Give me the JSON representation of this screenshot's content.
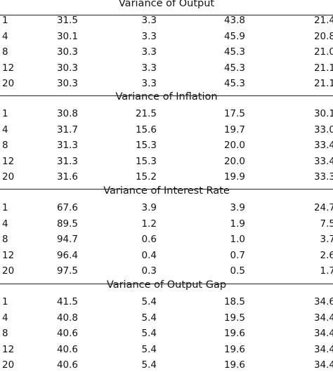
{
  "sections": [
    {
      "title": "Variance of Output",
      "rows": [
        [
          "1",
          "31.5",
          "3.3",
          "43.8",
          "21.4"
        ],
        [
          "4",
          "30.1",
          "3.3",
          "45.9",
          "20.8"
        ],
        [
          "8",
          "30.3",
          "3.3",
          "45.3",
          "21.0"
        ],
        [
          "12",
          "30.3",
          "3.3",
          "45.3",
          "21.1"
        ],
        [
          "20",
          "30.3",
          "3.3",
          "45.3",
          "21.1"
        ]
      ]
    },
    {
      "title": "Variance of Inflation",
      "rows": [
        [
          "1",
          "30.8",
          "21.5",
          "17.5",
          "30.1"
        ],
        [
          "4",
          "31.7",
          "15.6",
          "19.7",
          "33.0"
        ],
        [
          "8",
          "31.3",
          "15.3",
          "20.0",
          "33.4"
        ],
        [
          "12",
          "31.3",
          "15.3",
          "20.0",
          "33.4"
        ],
        [
          "20",
          "31.6",
          "15.2",
          "19.9",
          "33.3"
        ]
      ]
    },
    {
      "title": "Variance of Interest Rate",
      "rows": [
        [
          "1",
          "67.6",
          "3.9",
          "3.9",
          "24.7"
        ],
        [
          "4",
          "89.5",
          "1.2",
          "1.9",
          "7.5"
        ],
        [
          "8",
          "94.7",
          "0.6",
          "1.0",
          "3.7"
        ],
        [
          "12",
          "96.4",
          "0.4",
          "0.7",
          "2.6"
        ],
        [
          "20",
          "97.5",
          "0.3",
          "0.5",
          "1.7"
        ]
      ]
    },
    {
      "title": "Variance of Output Gap",
      "rows": [
        [
          "1",
          "41.5",
          "5.4",
          "18.5",
          "34.6"
        ],
        [
          "4",
          "40.8",
          "5.4",
          "19.5",
          "34.4"
        ],
        [
          "8",
          "40.6",
          "5.4",
          "19.6",
          "34.4"
        ],
        [
          "12",
          "40.6",
          "5.4",
          "19.6",
          "34.4"
        ],
        [
          "20",
          "40.6",
          "5.4",
          "19.6",
          "34.4"
        ]
      ]
    }
  ]
}
